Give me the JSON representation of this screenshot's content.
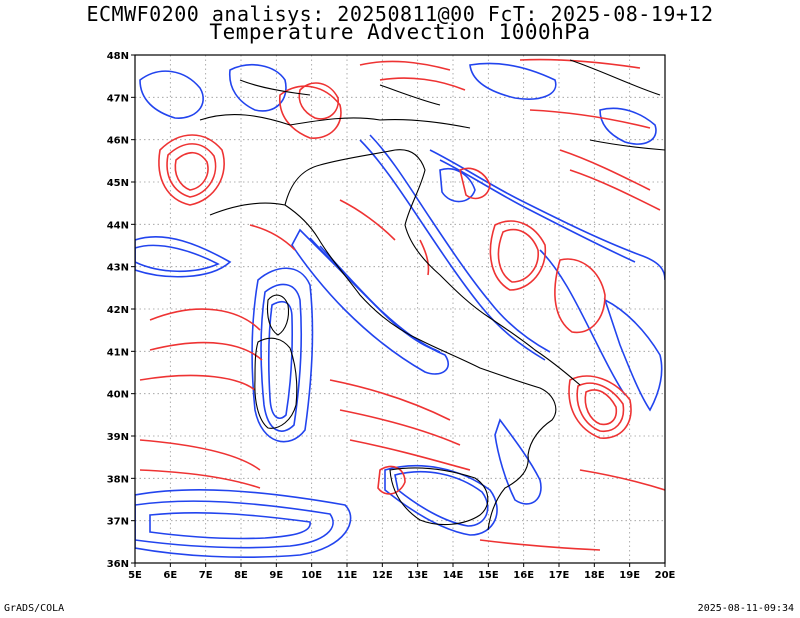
{
  "header": {
    "line1": "ECMWF0200 analisys: 20250811@00 FcT: 2025-08-19+12",
    "line2": "Temperature Advection 1000hPa"
  },
  "map": {
    "lon_labels": [
      "5E",
      "6E",
      "7E",
      "8E",
      "9E",
      "10E",
      "11E",
      "12E",
      "13E",
      "14E",
      "15E",
      "16E",
      "17E",
      "18E",
      "19E",
      "20E"
    ],
    "lat_labels": [
      "36N",
      "37N",
      "38N",
      "39N",
      "40N",
      "41N",
      "42N",
      "43N",
      "44N",
      "45N",
      "46N",
      "47N",
      "48N"
    ],
    "lon_range": [
      5,
      20
    ],
    "lat_range": [
      36,
      48
    ],
    "colors": {
      "positive": "#ee3333",
      "negative": "#2244ee",
      "coast": "#000000",
      "grid": "#999999"
    }
  },
  "footer": {
    "left": "GrADS/COLA",
    "right": "2025-08-11-09:34"
  }
}
